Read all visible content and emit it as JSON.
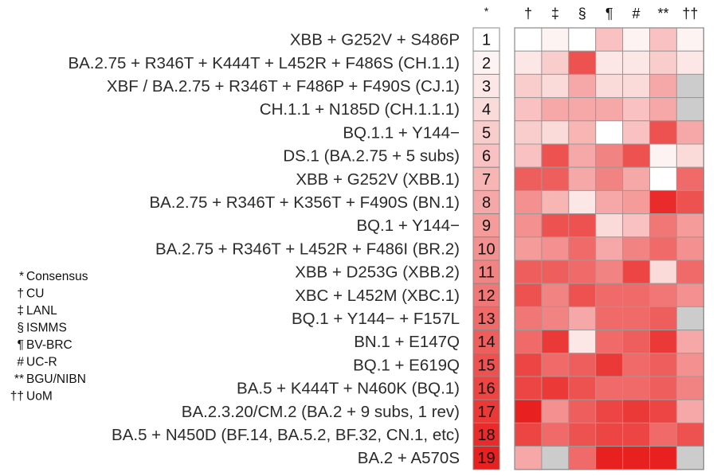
{
  "chart_data": {
    "type": "heatmap",
    "consensus_header": "*",
    "columns": [
      "†",
      "‡",
      "§",
      "¶",
      "#",
      "**",
      "††"
    ],
    "legend": [
      {
        "symbol": "*",
        "label": "Consensus"
      },
      {
        "symbol": "†",
        "label": "CU"
      },
      {
        "symbol": "‡",
        "label": "LANL"
      },
      {
        "symbol": "§",
        "label": "ISMMS"
      },
      {
        "symbol": "¶",
        "label": "BV-BRC"
      },
      {
        "symbol": "#",
        "label": "UC-R"
      },
      {
        "symbol": "**",
        "label": "BGU/NIBN"
      },
      {
        "symbol": "††",
        "label": "UoM"
      }
    ],
    "rows": [
      {
        "label": "XBB + G252V + S486P",
        "rank": "1",
        "consensus": 1,
        "values": [
          1,
          2,
          1,
          6,
          2,
          6,
          2
        ]
      },
      {
        "label": "BA.2.75 + R346T + K444T + L452R + F486S (CH.1.1)",
        "rank": "2",
        "consensus": 2,
        "values": [
          3,
          5,
          15,
          3,
          3,
          5,
          3
        ]
      },
      {
        "label": "XBF / BA.2.75 + R346T + F486P + F490S (CJ.1)",
        "rank": "3",
        "consensus": 3,
        "values": [
          5,
          4,
          8,
          4,
          4,
          8,
          null
        ]
      },
      {
        "label": "CH.1.1 + N185D (CH.1.1.1)",
        "rank": "4",
        "consensus": 4,
        "values": [
          6,
          8,
          8,
          8,
          6,
          8,
          null
        ]
      },
      {
        "label": "BQ.1.1 + Y144−",
        "rank": "5",
        "consensus": 5,
        "values": [
          5,
          4,
          7,
          1,
          6,
          15,
          8
        ]
      },
      {
        "label": "DS.1 (BA.2.75 + 5 subs)",
        "rank": "6",
        "consensus": 6,
        "values": [
          6,
          15,
          8,
          11,
          15,
          2,
          4
        ]
      },
      {
        "label": "XBB + G252V (XBB.1)",
        "rank": "7",
        "consensus": 7,
        "values": [
          14,
          14,
          8,
          11,
          8,
          1,
          13
        ]
      },
      {
        "label": "BA.2.75 + R346T + K356T + F490S (BN.1)",
        "rank": "8",
        "consensus": 8,
        "values": [
          10,
          7,
          3,
          8,
          9,
          18,
          15
        ]
      },
      {
        "label": "BQ.1 + Y144−",
        "rank": "9",
        "consensus": 9,
        "values": [
          10,
          15,
          15,
          4,
          6,
          12,
          9
        ]
      },
      {
        "label": "BA.2.75 + R346T + L452R + F486I (BR.2)",
        "rank": "10",
        "consensus": 10,
        "values": [
          9,
          10,
          13,
          8,
          11,
          13,
          10
        ]
      },
      {
        "label": "XBB + D253G (XBB.2)",
        "rank": "11",
        "consensus": 11,
        "values": [
          14,
          14,
          13,
          11,
          16,
          4,
          13
        ]
      },
      {
        "label": "XBC + L452M (XBC.1)",
        "rank": "12",
        "consensus": 12,
        "values": [
          15,
          11,
          15,
          13,
          13,
          12,
          10
        ]
      },
      {
        "label": "BQ.1 + Y144− + F157L",
        "rank": "13",
        "consensus": 13,
        "values": [
          12,
          11,
          8,
          13,
          13,
          14,
          null
        ]
      },
      {
        "label": "BN.1 + E147Q",
        "rank": "14",
        "consensus": 14,
        "values": [
          13,
          17,
          3,
          13,
          14,
          17,
          8
        ]
      },
      {
        "label": "BQ.1 + E619Q",
        "rank": "15",
        "consensus": 15,
        "values": [
          16,
          13,
          14,
          17,
          13,
          14,
          10
        ]
      },
      {
        "label": "BA.5 + K444T + N460K (BQ.1)",
        "rank": "16",
        "consensus": 16,
        "values": [
          16,
          17,
          15,
          13,
          13,
          14,
          11
        ]
      },
      {
        "label": "BA.2.3.20/CM.2 (BA.2 + 9 subs, 1 rev)",
        "rank": "17",
        "consensus": 17,
        "values": [
          19,
          10,
          14,
          16,
          17,
          16,
          8
        ]
      },
      {
        "label": "BA.5 + N450D (BF.14, BA.5.2, BF.32, CN.1, etc)",
        "rank": "18",
        "consensus": 18,
        "values": [
          16,
          13,
          15,
          16,
          16,
          13,
          15
        ]
      },
      {
        "label": "BA.2 + A570S",
        "rank": "19",
        "consensus": 19,
        "values": [
          8,
          null,
          13,
          19,
          19,
          19,
          null
        ]
      }
    ],
    "scale": {
      "min": 1,
      "max": 19,
      "low_color": "#ffffff",
      "high_color": "#e8201f",
      "missing_color": "#cccccc"
    }
  }
}
